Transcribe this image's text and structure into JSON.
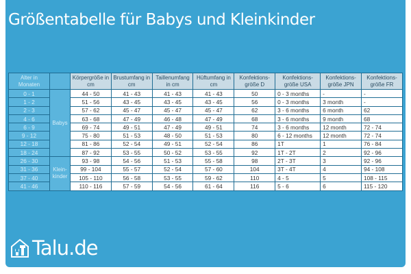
{
  "title": "Größentabelle für Babys und Kleinkinder",
  "headers": [
    "Alter in Monaten",
    "",
    "Körpergröße in cm",
    "Brustumfang in cm",
    "Taillenumfang in cm",
    "Hüftumfang in cm",
    "Konfektions-größe D",
    "Konfektions-größe USA",
    "Konfektions-größe JPN",
    "Konfektions-größe FR"
  ],
  "groups": [
    "Babys",
    "Klein-kinder"
  ],
  "rows": [
    [
      "0 - 1",
      "44 - 50",
      "41 - 43",
      "41 - 43",
      "41 - 43",
      "50",
      "0 - 3 months",
      "-",
      "-"
    ],
    [
      "1 - 2",
      "51 - 56",
      "43 - 45",
      "43 - 45",
      "43 - 45",
      "56",
      "0 - 3 months",
      "3 month",
      "-"
    ],
    [
      "2 - 3",
      "57 - 62",
      "45 - 47",
      "45 - 47",
      "45 - 47",
      "62",
      "3 - 6 months",
      "6 month",
      "62"
    ],
    [
      "4 - 6",
      "63 - 68",
      "47 - 49",
      "46 - 48",
      "47 - 49",
      "68",
      "3 - 6 months",
      "9 month",
      "68"
    ],
    [
      "6 - 9",
      "69 - 74",
      "49 - 51",
      "47 - 49",
      "49 - 51",
      "74",
      "3 - 6 months",
      "12 month",
      "72 - 74"
    ],
    [
      "9 - 12",
      "75 - 80",
      "51 - 53",
      "48 - 50",
      "51 - 53",
      "80",
      "6 - 12 months",
      "12 month",
      "72 - 74"
    ],
    [
      "12 - 18",
      "81 - 86",
      "52 - 54",
      "49 - 51",
      "52 - 54",
      "86",
      "1T",
      "1",
      "76 - 84"
    ],
    [
      "18 - 24",
      "87 - 92",
      "53 - 55",
      "50 - 52",
      "53 - 55",
      "92",
      "1T - 2T",
      "2",
      "92 - 96"
    ],
    [
      "26 - 30",
      "93 - 98",
      "54 - 56",
      "51 - 53",
      "55 - 58",
      "98",
      "2T - 3T",
      "3",
      "92 - 96"
    ],
    [
      "31 - 36",
      "99 - 104",
      "55 - 57",
      "52 - 54",
      "57 - 60",
      "104",
      "3T - 4T",
      "4",
      "94 - 108"
    ],
    [
      "37 - 40",
      "105 - 110",
      "56 - 58",
      "53 - 55",
      "59 - 62",
      "110",
      "4 - 5",
      "5",
      "108 - 115"
    ],
    [
      "41 - 46",
      "110 - 116",
      "57 - 59",
      "54 - 56",
      "61 - 64",
      "116",
      "5 - 6",
      "6",
      "115 - 120"
    ]
  ],
  "logo": "Talu.de"
}
